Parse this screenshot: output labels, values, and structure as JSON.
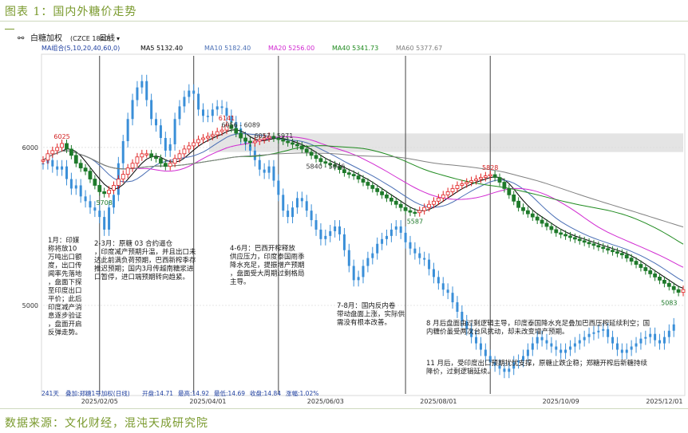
{
  "figure_title": "图表 1：国内外糖价走势",
  "source": "数据来源：文化财经，混沌天成研究院",
  "chart_data": {
    "type": "candlestick",
    "header": {
      "icon": "chart-icon",
      "instrument": "白糖加权",
      "instrument_code": "(CZCE 1840)",
      "period": "日线"
    },
    "ma_legend": [
      {
        "label": "MA组合(5,10,20,40,60,0)",
        "color": "#1e3fa0"
      },
      {
        "label": "MA5 5132.40",
        "color": "#000000"
      },
      {
        "label": "MA10 5182.40",
        "color": "#4a6fb5"
      },
      {
        "label": "MA20 5256.00",
        "color": "#d12ad1"
      },
      {
        "label": "MA40 5341.73",
        "color": "#1e8a1e"
      },
      {
        "label": "MA60 5377.67",
        "color": "#808080"
      }
    ],
    "y_axis": {
      "ticks": [
        6000,
        5000
      ],
      "ylim": [
        4440,
        6580
      ]
    },
    "x_axis": {
      "labels": [
        "2025/02/05",
        "2025/04/01",
        "2025/06/03",
        "2025/08/01",
        "2025/10/09",
        "2025/12/01"
      ]
    },
    "price_annotations": [
      "6025",
      "5708",
      "6141",
      "6056 - 6089",
      "6057 - 5971",
      "5840 - 5846",
      "5587",
      "5828",
      "5083"
    ],
    "resistance_bands": [
      {
        "from": 6056,
        "to": 6089
      },
      {
        "from": 5971,
        "to": 6057
      }
    ],
    "sugar_text_boxes": [
      "1月：印媒称将放10万吨出口额度，出口传闻率先落地，盘面下探至印度出口平价；此后印度减产消息逐步验证，盘面开启反弹走势。",
      "2-3月：原糖 03 合约逼仓，印度减产预期升温，并且出口未达此前满负荷预期，巴西新榨季存推迟预期；国内3月传越南糖浆进口暂停，进口端预期转向趋紧。",
      "4-6月：巴西开榨释放供应压力，印度泰国雨季降水充足，提振增产预期，盘面受大周期过剩格局主导。",
      "7-8月：国内反内卷带动盘面上涨，实际供需没有根本改善。",
      "8 月后盘面由过剩逻辑主导，印度泰国降水充足叠加巴西压榨延续利空；国内糖价虽受两次台风扰动，却未改变增产预期。",
      "11 月后，受印度出口预期扰忧支撑，原糖止跌企稳；郑糖开榨后新糖持续降价，过剩逻辑延续。"
    ],
    "status_bar": {
      "days": "241天",
      "series_label": "叠加:郑糖1号加权(日线)",
      "open": "开盘:14.71",
      "high": "最高:14.92",
      "low": "最低:14.69",
      "close": "收盘:14.84",
      "change": "涨幅:1.02%"
    },
    "series": [
      {
        "name": "白糖加权",
        "color_up": "#e02020",
        "color_down": "#1e7a2a",
        "values": [
          5920,
          5960,
          5980,
          6000,
          6025,
          5990,
          5950,
          5900,
          5870,
          5850,
          5800,
          5760,
          5720,
          5708,
          5730,
          5760,
          5800,
          5830,
          5870,
          5900,
          5940,
          5960,
          5960,
          5940,
          5930,
          5900,
          5880,
          5900,
          5930,
          5960,
          5990,
          6010,
          6030,
          6050,
          6060,
          6070,
          6080,
          6100,
          6110,
          6141,
          6120,
          6090,
          6060,
          6040,
          6030,
          6040,
          6050,
          6060,
          6070,
          6060,
          6050,
          6040,
          6030,
          6020,
          6010,
          5990,
          5970,
          5950,
          5930,
          5910,
          5900,
          5890,
          5880,
          5860,
          5840,
          5830,
          5820,
          5800,
          5780,
          5760,
          5740,
          5720,
          5700,
          5680,
          5660,
          5640,
          5620,
          5600,
          5590,
          5587,
          5600,
          5620,
          5640,
          5660,
          5680,
          5700,
          5720,
          5740,
          5760,
          5770,
          5780,
          5790,
          5800,
          5810,
          5820,
          5828,
          5810,
          5780,
          5740,
          5700,
          5660,
          5620,
          5600,
          5580,
          5560,
          5540,
          5520,
          5500,
          5480,
          5460,
          5450,
          5440,
          5430,
          5420,
          5410,
          5400,
          5390,
          5380,
          5370,
          5360,
          5350,
          5340,
          5330,
          5320,
          5300,
          5280,
          5260,
          5240,
          5220,
          5200,
          5180,
          5160,
          5140,
          5120,
          5100,
          5083,
          5100
        ]
      },
      {
        "name": "郑糖1号加权",
        "color": "#3a8fd8",
        "values": [
          5900,
          5920,
          5880,
          5860,
          5880,
          5800,
          5740,
          5760,
          5690,
          5660,
          5620,
          5600,
          5560,
          5480,
          5620,
          5700,
          5900,
          6040,
          6180,
          6300,
          6380,
          6420,
          6300,
          6180,
          6140,
          6060,
          5980,
          6020,
          6180,
          6260,
          6320,
          6360,
          6340,
          6240,
          6200,
          6200,
          6240,
          6260,
          6250,
          6200,
          6160,
          6120,
          6060,
          6020,
          5980,
          5920,
          5860,
          5840,
          5880,
          5790,
          5700,
          5600,
          5560,
          5620,
          5680,
          5660,
          5600,
          5540,
          5480,
          5420,
          5440,
          5470,
          5500,
          5450,
          5350,
          5250,
          5160,
          5180,
          5250,
          5300,
          5330,
          5390,
          5420,
          5440,
          5480,
          5500,
          5460,
          5400,
          5360,
          5330,
          5300,
          5290,
          5230,
          5180,
          5140,
          5100,
          5080,
          5020,
          4960,
          4900,
          4850,
          4800,
          4760,
          4720,
          4680,
          4640,
          4620,
          4600,
          4580,
          4600,
          4640,
          4650,
          4680,
          4720,
          4760,
          4800,
          4780,
          4760,
          4740,
          4720,
          4700,
          4720,
          4740,
          4760,
          4780,
          4800,
          4820,
          4830,
          4840,
          4850,
          4800,
          4760,
          4720,
          4700,
          4720,
          4740,
          4760,
          4790,
          4800,
          4820,
          4780,
          4760,
          4800,
          4840,
          4880
        ]
      }
    ]
  }
}
